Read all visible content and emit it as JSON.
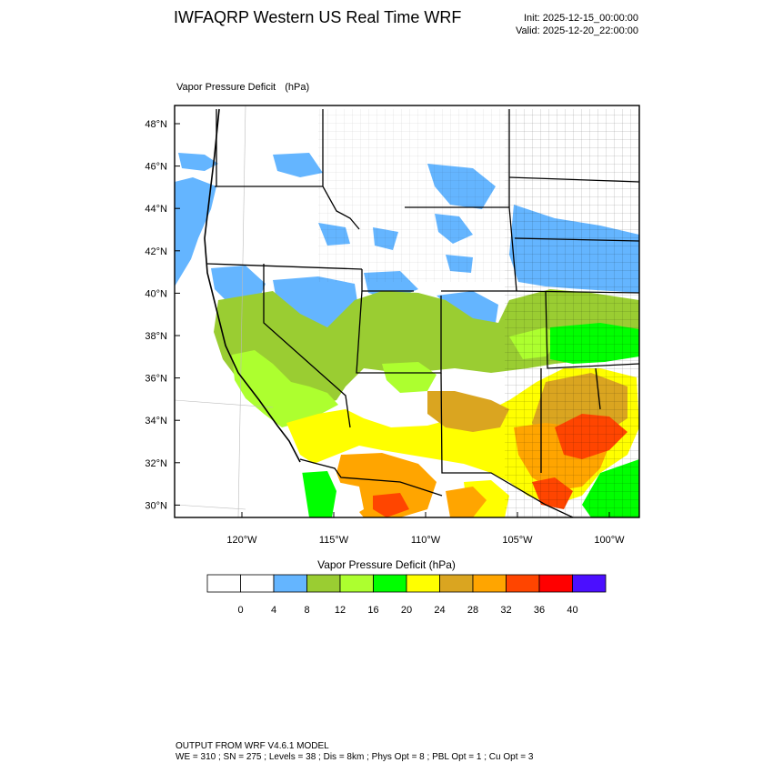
{
  "header": {
    "title": "IWFAQRP Western US Real Time WRF",
    "init": "Init: 2025-12-15_00:00:00",
    "valid": "Valid: 2025-12-20_22:00:00"
  },
  "map": {
    "field_label": "Vapor Pressure Deficit",
    "units_label": "(hPa)",
    "lat_labels": [
      "48°N",
      "46°N",
      "44°N",
      "42°N",
      "40°N",
      "38°N",
      "36°N",
      "34°N",
      "32°N",
      "30°N"
    ],
    "lon_labels": [
      "120°W",
      "115°W",
      "110°W",
      "105°W",
      "100°W"
    ],
    "extent": {
      "lon_min": -123.6,
      "lon_max": -98.3,
      "lat_min": 29.4,
      "lat_max": 48.8
    },
    "colors": {
      "ocean_blue": "#64b5ff",
      "green_dark": "#9acd32",
      "green_light": "#adff2f",
      "green_bright": "#00ff00",
      "yellow": "#ffff00",
      "gold": "#daa520",
      "orange": "#ffa500",
      "red_orange": "#ff4500",
      "red": "#ff0000",
      "purple": "#4b0fff"
    }
  },
  "colorbar": {
    "title": "Vapor Pressure Deficit  (hPa)",
    "labels": [
      "0",
      "4",
      "8",
      "12",
      "16",
      "20",
      "24",
      "28",
      "32",
      "36",
      "40"
    ],
    "colors": [
      "#ffffff",
      "#ffffff",
      "#64b5ff",
      "#9acd32",
      "#adff2f",
      "#00ff00",
      "#ffff00",
      "#daa520",
      "#ffa500",
      "#ff4500",
      "#ff0000",
      "#4b0fff"
    ]
  },
  "footer": {
    "line1": "OUTPUT FROM WRF V4.6.1 MODEL",
    "line2": "WE = 310 ; SN = 275 ; Levels = 38 ; Dis = 8km ; Phys Opt = 8 ; PBL Opt = 1 ; Cu Opt = 3"
  }
}
